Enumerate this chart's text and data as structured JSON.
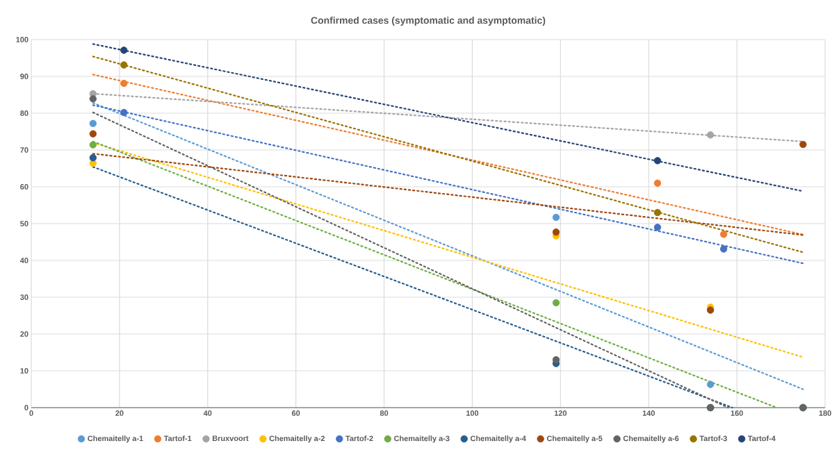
{
  "chart_data": {
    "type": "scatter",
    "title": "Confirmed cases (symptomatic and asymptomatic)",
    "xlim": [
      0,
      180
    ],
    "xticks": [
      0,
      20,
      40,
      60,
      80,
      100,
      120,
      140,
      160,
      180
    ],
    "ylim": [
      0,
      100
    ],
    "yticks": [
      0,
      10,
      20,
      30,
      40,
      50,
      60,
      70,
      80,
      90,
      100
    ],
    "grid": true,
    "legend": "bottom",
    "marker": "circle",
    "series": [
      {
        "name": "Chemaitelly a-1",
        "color": "#5b9bd5",
        "x": [
          14,
          119,
          154,
          175
        ],
        "values": [
          77.2,
          51.7,
          6.3,
          0
        ]
      },
      {
        "name": "Tartof-1",
        "color": "#ed7d31",
        "x": [
          21,
          142,
          157
        ],
        "values": [
          88.1,
          61,
          47.1
        ]
      },
      {
        "name": "Bruxvoort",
        "color": "#a5a5a5",
        "x": [
          14,
          154
        ],
        "values": [
          85.3,
          74.1
        ]
      },
      {
        "name": "Chemaitelly a-2",
        "color": "#ffc000",
        "x": [
          14,
          119,
          154,
          175
        ],
        "values": [
          66.4,
          46.7,
          27.3,
          0
        ]
      },
      {
        "name": "Tartof-2",
        "color": "#4472c4",
        "x": [
          21,
          142,
          157
        ],
        "values": [
          80.2,
          49,
          43.1
        ]
      },
      {
        "name": "Chemaitelly a-3",
        "color": "#70ad47",
        "x": [
          14,
          119,
          154,
          175
        ],
        "values": [
          71.4,
          28.5,
          0,
          0
        ]
      },
      {
        "name": "Chemaitelly a-4",
        "color": "#255e91",
        "x": [
          14,
          119,
          154,
          175
        ],
        "values": [
          67.9,
          12,
          0,
          0
        ]
      },
      {
        "name": "Chemaitelly a-5",
        "color": "#9e480e",
        "x": [
          14,
          119,
          154,
          175
        ],
        "values": [
          74.4,
          47.7,
          26.5,
          71.5
        ]
      },
      {
        "name": "Chemaitelly a-6",
        "color": "#636363",
        "x": [
          14,
          119,
          154,
          175
        ],
        "values": [
          83.9,
          13,
          0,
          0
        ]
      },
      {
        "name": "Tartof-3",
        "color": "#997300",
        "x": [
          21,
          142
        ],
        "values": [
          93.1,
          53
        ]
      },
      {
        "name": "Tartof-4",
        "color": "#264478",
        "x": [
          21,
          142
        ],
        "values": [
          97.1,
          67.1
        ]
      },
      {
        "type": "line",
        "marker": "none",
        "line_style": "dotted",
        "color": "#5b9bd5",
        "x": [
          14,
          175
        ],
        "values": [
          82.8,
          5
        ]
      },
      {
        "type": "line",
        "marker": "none",
        "line_style": "dotted",
        "color": "#ed7d31",
        "x": [
          14,
          175
        ],
        "values": [
          90.5,
          47
        ]
      },
      {
        "type": "line",
        "marker": "none",
        "line_style": "dotted",
        "color": "#a5a5a5",
        "x": [
          14,
          175
        ],
        "values": [
          85.3,
          72.3
        ]
      },
      {
        "type": "line",
        "marker": "none",
        "line_style": "dotted",
        "color": "#ffc000",
        "x": [
          14,
          175
        ],
        "values": [
          72,
          13.7
        ]
      },
      {
        "type": "line",
        "marker": "none",
        "line_style": "dotted",
        "color": "#4472c4",
        "x": [
          14,
          175
        ],
        "values": [
          82.2,
          39.2
        ]
      },
      {
        "type": "line",
        "marker": "none",
        "line_style": "dotted",
        "color": "#70ad47",
        "x": [
          14,
          169
        ],
        "values": [
          72.3,
          0
        ]
      },
      {
        "type": "line",
        "marker": "none",
        "line_style": "dotted",
        "color": "#255e91",
        "x": [
          14,
          159
        ],
        "values": [
          65.4,
          0
        ]
      },
      {
        "type": "line",
        "marker": "none",
        "line_style": "dotted",
        "color": "#9e480e",
        "x": [
          14,
          175
        ],
        "values": [
          69,
          46.9
        ]
      },
      {
        "type": "line",
        "marker": "none",
        "line_style": "dotted",
        "color": "#636363",
        "x": [
          14,
          158
        ],
        "values": [
          80.2,
          0
        ]
      },
      {
        "type": "line",
        "marker": "none",
        "line_style": "dotted",
        "color": "#997300",
        "x": [
          14,
          175
        ],
        "values": [
          95.4,
          42.2
        ]
      },
      {
        "type": "line",
        "marker": "none",
        "line_style": "dotted",
        "color": "#264478",
        "x": [
          14,
          175
        ],
        "values": [
          98.8,
          58.8
        ]
      }
    ]
  }
}
